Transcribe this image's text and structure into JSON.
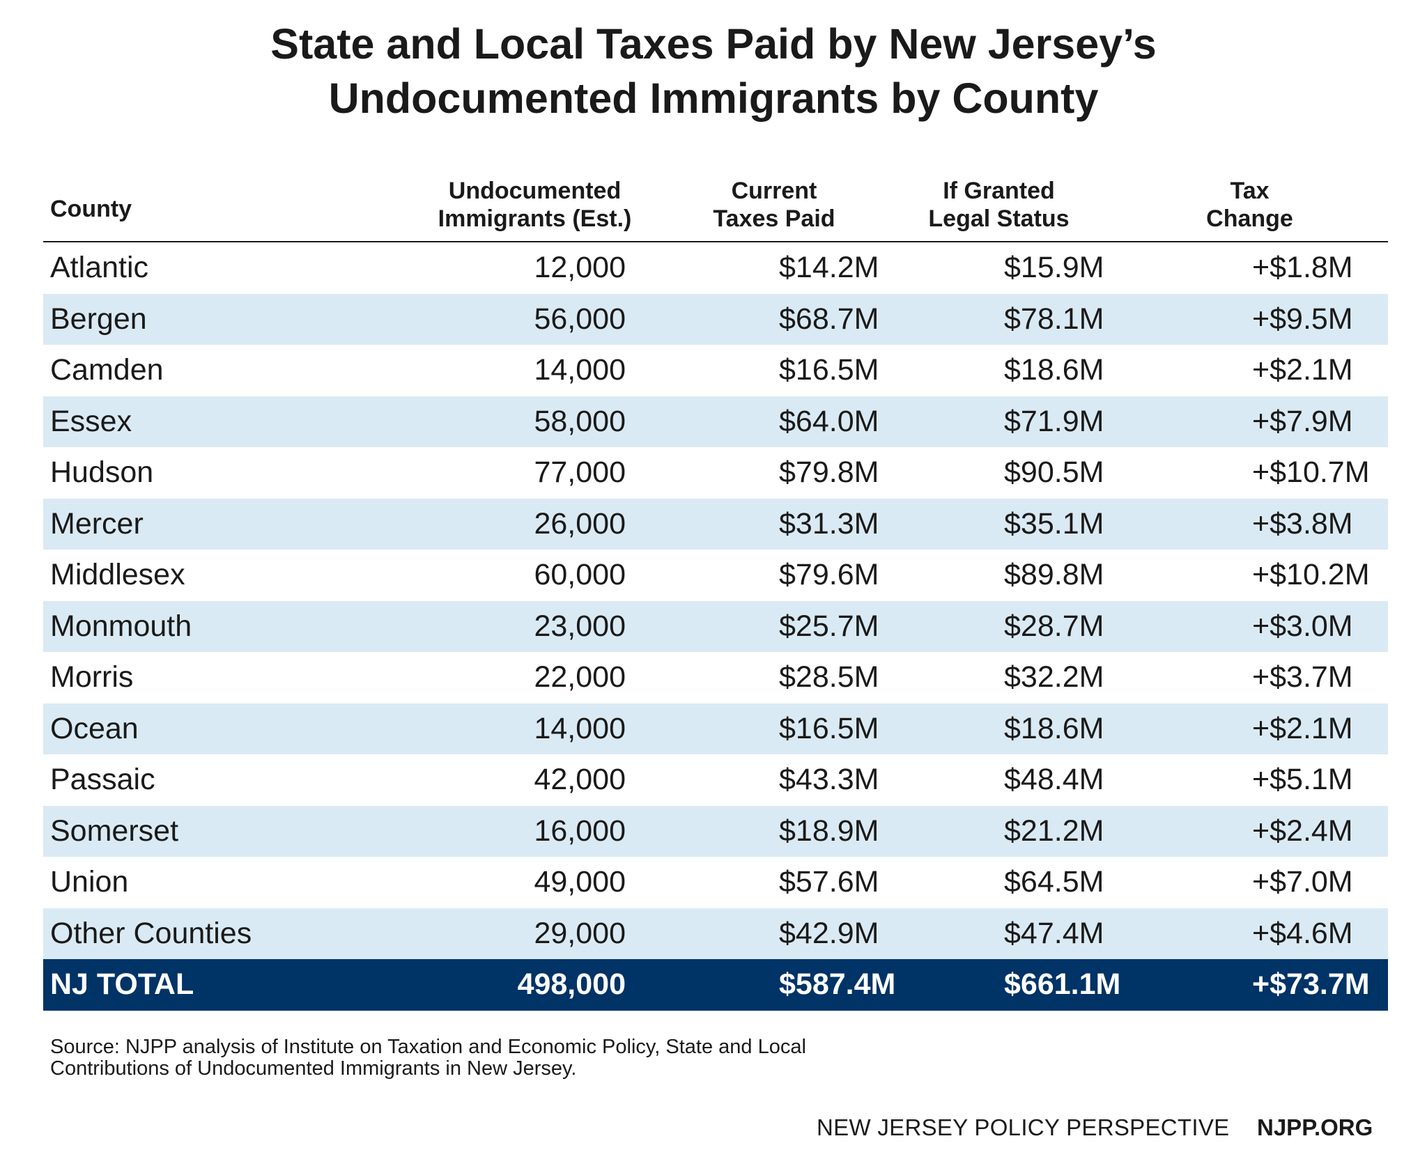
{
  "title": {
    "line1": "State and Local Taxes Paid by New Jersey’s",
    "line2": "Undocumented Immigrants by County"
  },
  "table": {
    "headers": [
      {
        "line1": "County",
        "line2": ""
      },
      {
        "line1": "Undocumented",
        "line2": "Immigrants (Est.)"
      },
      {
        "line1": "Current",
        "line2": "Taxes Paid"
      },
      {
        "line1": "If Granted",
        "line2": "Legal Status"
      },
      {
        "line1": "Tax",
        "line2": "Change"
      }
    ],
    "rows": [
      {
        "county": "Atlantic",
        "immigrants": "12,000",
        "current": "$14.2M",
        "granted": "$15.9M",
        "change": "+$1.8M"
      },
      {
        "county": "Bergen",
        "immigrants": "56,000",
        "current": "$68.7M",
        "granted": "$78.1M",
        "change": "+$9.5M"
      },
      {
        "county": "Camden",
        "immigrants": "14,000",
        "current": "$16.5M",
        "granted": "$18.6M",
        "change": "+$2.1M"
      },
      {
        "county": "Essex",
        "immigrants": "58,000",
        "current": "$64.0M",
        "granted": "$71.9M",
        "change": "+$7.9M"
      },
      {
        "county": "Hudson",
        "immigrants": "77,000",
        "current": "$79.8M",
        "granted": "$90.5M",
        "change": "+$10.7M"
      },
      {
        "county": "Mercer",
        "immigrants": "26,000",
        "current": "$31.3M",
        "granted": "$35.1M",
        "change": "+$3.8M"
      },
      {
        "county": "Middlesex",
        "immigrants": "60,000",
        "current": "$79.6M",
        "granted": "$89.8M",
        "change": "+$10.2M"
      },
      {
        "county": "Monmouth",
        "immigrants": "23,000",
        "current": "$25.7M",
        "granted": "$28.7M",
        "change": "+$3.0M"
      },
      {
        "county": "Morris",
        "immigrants": "22,000",
        "current": "$28.5M",
        "granted": "$32.2M",
        "change": "+$3.7M"
      },
      {
        "county": "Ocean",
        "immigrants": "14,000",
        "current": "$16.5M",
        "granted": "$18.6M",
        "change": "+$2.1M"
      },
      {
        "county": "Passaic",
        "immigrants": "42,000",
        "current": "$43.3M",
        "granted": "$48.4M",
        "change": "+$5.1M"
      },
      {
        "county": "Somerset",
        "immigrants": "16,000",
        "current": "$18.9M",
        "granted": "$21.2M",
        "change": "+$2.4M"
      },
      {
        "county": "Union",
        "immigrants": "49,000",
        "current": "$57.6M",
        "granted": "$64.5M",
        "change": "+$7.0M"
      },
      {
        "county": "Other Counties",
        "immigrants": "29,000",
        "current": "$42.9M",
        "granted": "$47.4M",
        "change": "+$4.6M"
      }
    ],
    "total": {
      "county": "NJ TOTAL",
      "immigrants": "498,000",
      "current": "$587.4M",
      "granted": "$661.1M",
      "change": "+$73.7M"
    }
  },
  "source": {
    "line1": "Source: NJPP analysis of Institute on Taxation and Economic Policy, State and Local",
    "line2": "Contributions of Undocumented Immigrants in New Jersey."
  },
  "footer": {
    "org": "NEW JERSEY POLICY PERSPECTIVE",
    "url": "NJPP.ORG"
  },
  "colors": {
    "stripe": "#daeaf4",
    "total_bg": "#003366",
    "text": "#1a1a1a"
  }
}
